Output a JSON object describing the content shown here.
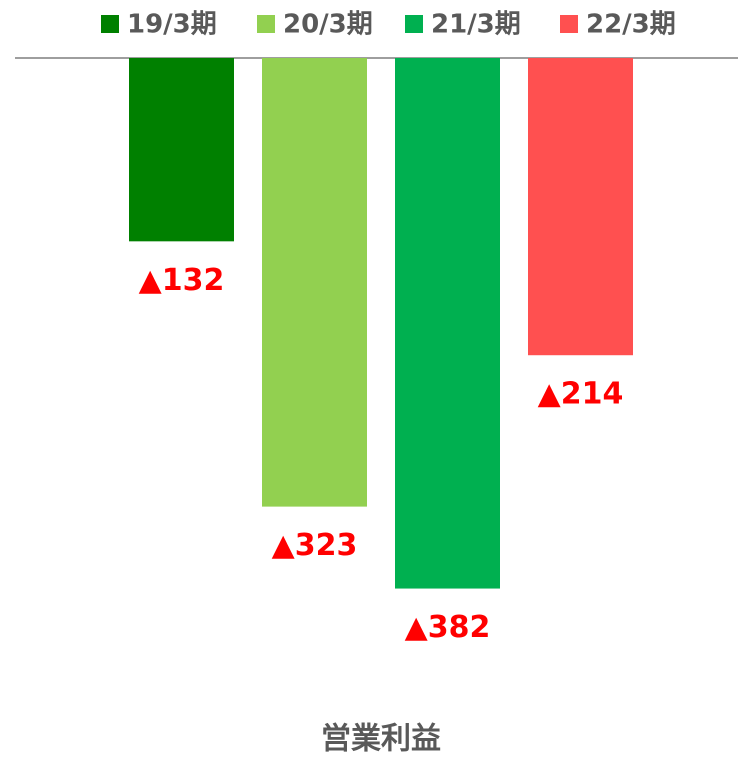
{
  "chart_data": {
    "type": "bar",
    "categories": [
      "営業利益"
    ],
    "series": [
      {
        "name": "19/3期",
        "color": "#008000",
        "values": [
          -132
        ],
        "value_labels": [
          "▲132"
        ]
      },
      {
        "name": "20/3期",
        "color": "#92d050",
        "values": [
          -323
        ],
        "value_labels": [
          "▲323"
        ]
      },
      {
        "name": "21/3期",
        "color": "#00b050",
        "values": [
          -382
        ],
        "value_labels": [
          "▲382"
        ]
      },
      {
        "name": "22/3期",
        "color": "#ff5050",
        "values": [
          -214
        ],
        "value_labels": [
          "▲214"
        ]
      }
    ],
    "ylim": [
      -450,
      0
    ],
    "legend": "top"
  }
}
